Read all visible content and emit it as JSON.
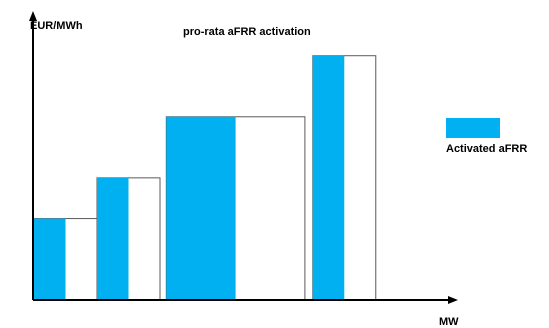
{
  "title": "pro-rata aFRR activation",
  "y_axis_label": "EUR/MWh",
  "x_axis_label": "MW",
  "legend": {
    "label": "Activated aFRR",
    "color": "#00b0f0"
  },
  "colors": {
    "activated": "#00b0f0",
    "offered": "#ffffff",
    "outline": "#595959",
    "axis": "#000000"
  },
  "chart_data": {
    "type": "bar",
    "description_note": "",
    "steps": [
      {
        "offered_mw": 2.0,
        "activated_mw": 1.0,
        "price": 2.0
      },
      {
        "offered_mw": 2.0,
        "activated_mw": 1.0,
        "price": 3.0
      },
      {
        "offered_mw": 4.4,
        "activated_mw": 2.2,
        "price": 4.5
      },
      {
        "offered_mw": 2.0,
        "activated_mw": 1.0,
        "price": 6.0
      }
    ],
    "xlim": [
      0,
      12
    ],
    "ylim": [
      0,
      7
    ]
  }
}
